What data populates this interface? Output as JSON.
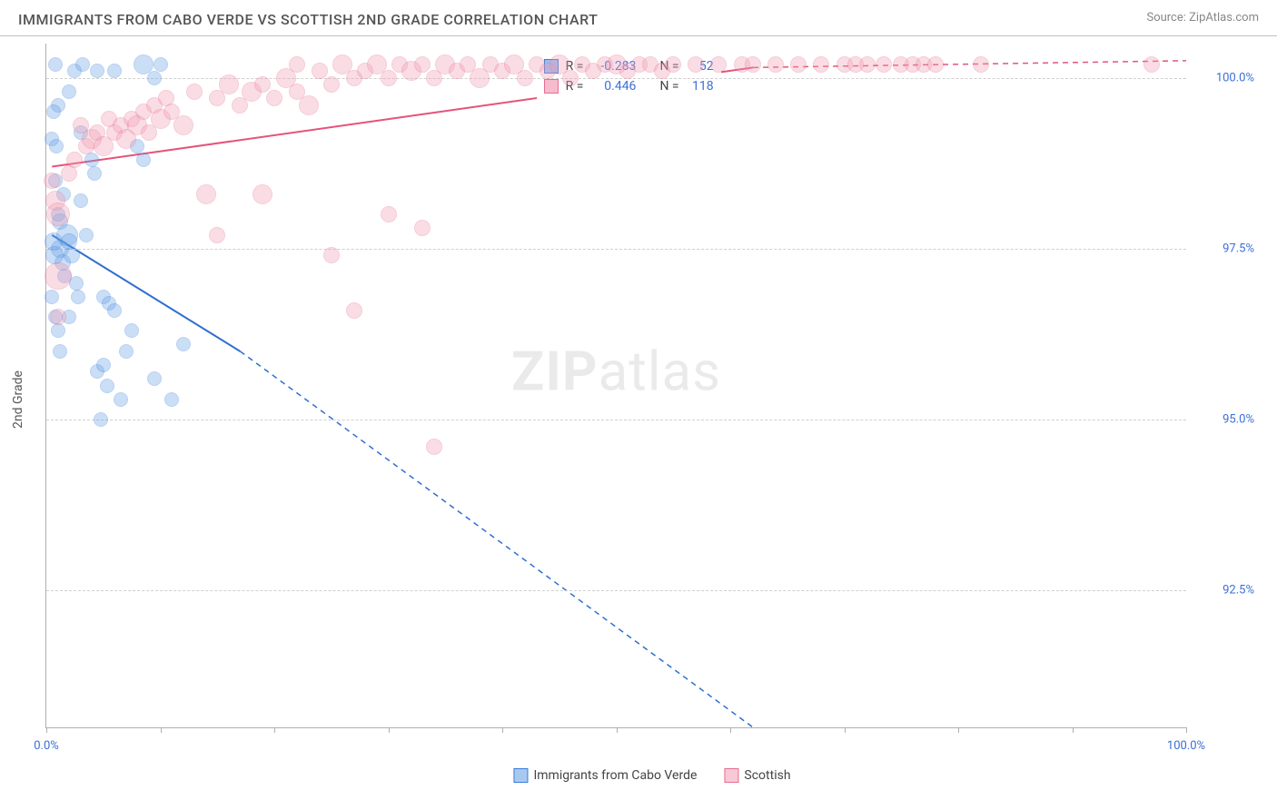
{
  "header": {
    "title": "IMMIGRANTS FROM CABO VERDE VS SCOTTISH 2ND GRADE CORRELATION CHART",
    "source": "Source: ZipAtlas.com"
  },
  "watermark": {
    "zip": "ZIP",
    "atlas": "atlas"
  },
  "chart": {
    "type": "scatter",
    "y_label": "2nd Grade",
    "background_color": "#ffffff",
    "grid_color": "#d0d0d0",
    "axis_color": "#b0b0b0",
    "tick_font_color": "#3b6fd8",
    "tick_fontsize": 13,
    "label_fontsize": 14,
    "xlim": [
      0,
      100
    ],
    "ylim": [
      90.5,
      100.5
    ],
    "x_ticks": [
      0,
      10,
      20,
      30,
      40,
      50,
      60,
      70,
      80,
      90,
      100
    ],
    "x_tick_labels": {
      "0": "0.0%",
      "100": "100.0%"
    },
    "y_gridlines": [
      92.5,
      95.0,
      97.5,
      100.0
    ],
    "y_tick_labels": {
      "92.5": "92.5%",
      "95.0": "95.0%",
      "97.5": "97.5%",
      "100.0": "100.0%"
    },
    "series": [
      {
        "name": "Immigrants from Cabo Verde",
        "short": "cabo",
        "fill_color": "#6aa3e8",
        "stroke_color": "#3b7dd8",
        "fill_opacity": 0.35,
        "stroke_opacity": 0.9,
        "stats": {
          "R": "-0.283",
          "N": "52"
        },
        "trend": {
          "x1": 0.5,
          "y1": 97.7,
          "x2": 17,
          "y2": 96.0,
          "solid_until_x": 17,
          "dash_to_x": 62,
          "dash_to_y": 90.5,
          "color": "#2f6fd0",
          "width": 2
        },
        "points": [
          {
            "x": 0.5,
            "y": 99.1,
            "r": 8
          },
          {
            "x": 0.8,
            "y": 98.5,
            "r": 8
          },
          {
            "x": 0.8,
            "y": 100.2,
            "r": 8
          },
          {
            "x": 1.0,
            "y": 99.6,
            "r": 8
          },
          {
            "x": 1.2,
            "y": 97.9,
            "r": 9
          },
          {
            "x": 1.2,
            "y": 97.5,
            "r": 10
          },
          {
            "x": 1.4,
            "y": 97.3,
            "r": 9
          },
          {
            "x": 1.6,
            "y": 97.1,
            "r": 8
          },
          {
            "x": 0.6,
            "y": 97.6,
            "r": 10
          },
          {
            "x": 0.7,
            "y": 97.4,
            "r": 10
          },
          {
            "x": 0.5,
            "y": 96.8,
            "r": 8
          },
          {
            "x": 0.8,
            "y": 96.5,
            "r": 8
          },
          {
            "x": 1.0,
            "y": 96.3,
            "r": 8
          },
          {
            "x": 1.2,
            "y": 96.0,
            "r": 8
          },
          {
            "x": 1.8,
            "y": 97.7,
            "r": 12
          },
          {
            "x": 2.0,
            "y": 97.6,
            "r": 9
          },
          {
            "x": 2.2,
            "y": 97.4,
            "r": 9
          },
          {
            "x": 2.0,
            "y": 99.8,
            "r": 8
          },
          {
            "x": 2.5,
            "y": 100.1,
            "r": 8
          },
          {
            "x": 3.0,
            "y": 99.2,
            "r": 8
          },
          {
            "x": 3.2,
            "y": 100.2,
            "r": 8
          },
          {
            "x": 4.0,
            "y": 98.8,
            "r": 8
          },
          {
            "x": 4.2,
            "y": 98.6,
            "r": 8
          },
          {
            "x": 4.5,
            "y": 100.1,
            "r": 8
          },
          {
            "x": 4.5,
            "y": 95.7,
            "r": 8
          },
          {
            "x": 5.0,
            "y": 95.8,
            "r": 8
          },
          {
            "x": 5.3,
            "y": 95.5,
            "r": 8
          },
          {
            "x": 5.0,
            "y": 96.8,
            "r": 8
          },
          {
            "x": 5.5,
            "y": 96.7,
            "r": 8
          },
          {
            "x": 6.0,
            "y": 96.6,
            "r": 8
          },
          {
            "x": 6.0,
            "y": 100.1,
            "r": 8
          },
          {
            "x": 6.5,
            "y": 95.3,
            "r": 8
          },
          {
            "x": 7.0,
            "y": 96.0,
            "r": 8
          },
          {
            "x": 7.5,
            "y": 96.3,
            "r": 8
          },
          {
            "x": 8.0,
            "y": 99.0,
            "r": 8
          },
          {
            "x": 8.5,
            "y": 98.8,
            "r": 8
          },
          {
            "x": 8.5,
            "y": 100.2,
            "r": 11
          },
          {
            "x": 9.5,
            "y": 100.0,
            "r": 8
          },
          {
            "x": 9.5,
            "y": 95.6,
            "r": 8
          },
          {
            "x": 10.0,
            "y": 100.2,
            "r": 8
          },
          {
            "x": 11.0,
            "y": 95.3,
            "r": 8
          },
          {
            "x": 12.0,
            "y": 96.1,
            "r": 8
          },
          {
            "x": 4.8,
            "y": 95.0,
            "r": 8
          },
          {
            "x": 2.6,
            "y": 97.0,
            "r": 8
          },
          {
            "x": 1.0,
            "y": 98.0,
            "r": 8
          },
          {
            "x": 1.5,
            "y": 98.3,
            "r": 8
          },
          {
            "x": 2.0,
            "y": 96.5,
            "r": 8
          },
          {
            "x": 2.8,
            "y": 96.8,
            "r": 8
          },
          {
            "x": 3.5,
            "y": 97.7,
            "r": 8
          },
          {
            "x": 0.6,
            "y": 99.5,
            "r": 8
          },
          {
            "x": 0.9,
            "y": 99.0,
            "r": 8
          },
          {
            "x": 3.0,
            "y": 98.2,
            "r": 8
          }
        ]
      },
      {
        "name": "Scottish",
        "short": "scot",
        "fill_color": "#f29fb5",
        "stroke_color": "#e56f8f",
        "fill_opacity": 0.35,
        "stroke_opacity": 0.9,
        "stats": {
          "R": "0.446",
          "N": "118"
        },
        "trend": {
          "x1": 0.5,
          "y1": 98.7,
          "x2": 62,
          "y2": 100.15,
          "solid_until_x": 62,
          "dash_to_x": 100,
          "dash_to_y": 100.25,
          "color": "#e5537a",
          "width": 2
        },
        "points": [
          {
            "x": 0.5,
            "y": 98.5,
            "r": 9
          },
          {
            "x": 0.8,
            "y": 98.2,
            "r": 11
          },
          {
            "x": 1.0,
            "y": 98.0,
            "r": 13
          },
          {
            "x": 1.0,
            "y": 97.1,
            "r": 15
          },
          {
            "x": 1.0,
            "y": 96.5,
            "r": 9
          },
          {
            "x": 2.0,
            "y": 98.6,
            "r": 9
          },
          {
            "x": 2.5,
            "y": 98.8,
            "r": 9
          },
          {
            "x": 3.0,
            "y": 99.3,
            "r": 9
          },
          {
            "x": 3.5,
            "y": 99.0,
            "r": 9
          },
          {
            "x": 4.0,
            "y": 99.1,
            "r": 11
          },
          {
            "x": 4.5,
            "y": 99.2,
            "r": 9
          },
          {
            "x": 5.0,
            "y": 99.0,
            "r": 11
          },
          {
            "x": 5.5,
            "y": 99.4,
            "r": 9
          },
          {
            "x": 6.0,
            "y": 99.2,
            "r": 9
          },
          {
            "x": 6.5,
            "y": 99.3,
            "r": 9
          },
          {
            "x": 7.0,
            "y": 99.1,
            "r": 11
          },
          {
            "x": 7.5,
            "y": 99.4,
            "r": 9
          },
          {
            "x": 8.0,
            "y": 99.3,
            "r": 11
          },
          {
            "x": 8.5,
            "y": 99.5,
            "r": 9
          },
          {
            "x": 9.0,
            "y": 99.2,
            "r": 9
          },
          {
            "x": 9.5,
            "y": 99.6,
            "r": 9
          },
          {
            "x": 10.0,
            "y": 99.4,
            "r": 11
          },
          {
            "x": 10.5,
            "y": 99.7,
            "r": 9
          },
          {
            "x": 11.0,
            "y": 99.5,
            "r": 9
          },
          {
            "x": 12.0,
            "y": 99.3,
            "r": 11
          },
          {
            "x": 13.0,
            "y": 99.8,
            "r": 9
          },
          {
            "x": 14.0,
            "y": 98.3,
            "r": 11
          },
          {
            "x": 15.0,
            "y": 99.7,
            "r": 9
          },
          {
            "x": 15.0,
            "y": 97.7,
            "r": 9
          },
          {
            "x": 16.0,
            "y": 99.9,
            "r": 11
          },
          {
            "x": 17.0,
            "y": 99.6,
            "r": 9
          },
          {
            "x": 18.0,
            "y": 99.8,
            "r": 11
          },
          {
            "x": 19.0,
            "y": 99.9,
            "r": 9
          },
          {
            "x": 19.0,
            "y": 98.3,
            "r": 11
          },
          {
            "x": 20.0,
            "y": 99.7,
            "r": 9
          },
          {
            "x": 21.0,
            "y": 100.0,
            "r": 11
          },
          {
            "x": 22.0,
            "y": 99.8,
            "r": 9
          },
          {
            "x": 22.0,
            "y": 100.2,
            "r": 9
          },
          {
            "x": 23.0,
            "y": 99.6,
            "r": 11
          },
          {
            "x": 24.0,
            "y": 100.1,
            "r": 9
          },
          {
            "x": 25.0,
            "y": 99.9,
            "r": 9
          },
          {
            "x": 25.0,
            "y": 97.4,
            "r": 9
          },
          {
            "x": 26.0,
            "y": 100.2,
            "r": 11
          },
          {
            "x": 27.0,
            "y": 100.0,
            "r": 9
          },
          {
            "x": 27.0,
            "y": 96.6,
            "r": 9
          },
          {
            "x": 28.0,
            "y": 100.1,
            "r": 9
          },
          {
            "x": 29.0,
            "y": 100.2,
            "r": 11
          },
          {
            "x": 30.0,
            "y": 100.0,
            "r": 9
          },
          {
            "x": 30.0,
            "y": 98.0,
            "r": 9
          },
          {
            "x": 31.0,
            "y": 100.2,
            "r": 9
          },
          {
            "x": 32.0,
            "y": 100.1,
            "r": 11
          },
          {
            "x": 33.0,
            "y": 100.2,
            "r": 9
          },
          {
            "x": 33.0,
            "y": 97.8,
            "r": 9
          },
          {
            "x": 34.0,
            "y": 100.0,
            "r": 9
          },
          {
            "x": 34.0,
            "y": 94.6,
            "r": 9
          },
          {
            "x": 35.0,
            "y": 100.2,
            "r": 11
          },
          {
            "x": 36.0,
            "y": 100.1,
            "r": 9
          },
          {
            "x": 37.0,
            "y": 100.2,
            "r": 9
          },
          {
            "x": 38.0,
            "y": 100.0,
            "r": 11
          },
          {
            "x": 39.0,
            "y": 100.2,
            "r": 9
          },
          {
            "x": 40.0,
            "y": 100.1,
            "r": 9
          },
          {
            "x": 41.0,
            "y": 100.2,
            "r": 11
          },
          {
            "x": 42.0,
            "y": 100.0,
            "r": 9
          },
          {
            "x": 43.0,
            "y": 100.2,
            "r": 9
          },
          {
            "x": 44.0,
            "y": 100.1,
            "r": 9
          },
          {
            "x": 45.0,
            "y": 100.2,
            "r": 11
          },
          {
            "x": 46.0,
            "y": 100.0,
            "r": 9
          },
          {
            "x": 47.0,
            "y": 100.2,
            "r": 9
          },
          {
            "x": 48.0,
            "y": 100.1,
            "r": 9
          },
          {
            "x": 49.0,
            "y": 100.2,
            "r": 9
          },
          {
            "x": 50.0,
            "y": 100.2,
            "r": 11
          },
          {
            "x": 51.0,
            "y": 100.1,
            "r": 9
          },
          {
            "x": 52.0,
            "y": 100.2,
            "r": 9
          },
          {
            "x": 53.0,
            "y": 100.2,
            "r": 9
          },
          {
            "x": 54.0,
            "y": 100.1,
            "r": 9
          },
          {
            "x": 55.0,
            "y": 100.2,
            "r": 9
          },
          {
            "x": 57.0,
            "y": 100.2,
            "r": 9
          },
          {
            "x": 59.0,
            "y": 100.2,
            "r": 9
          },
          {
            "x": 61.0,
            "y": 100.2,
            "r": 9
          },
          {
            "x": 62.0,
            "y": 100.2,
            "r": 9
          },
          {
            "x": 64.0,
            "y": 100.2,
            "r": 9
          },
          {
            "x": 66.0,
            "y": 100.2,
            "r": 9
          },
          {
            "x": 68.0,
            "y": 100.2,
            "r": 9
          },
          {
            "x": 70.0,
            "y": 100.2,
            "r": 9
          },
          {
            "x": 71.0,
            "y": 100.2,
            "r": 9
          },
          {
            "x": 72.0,
            "y": 100.2,
            "r": 9
          },
          {
            "x": 73.5,
            "y": 100.2,
            "r": 9
          },
          {
            "x": 75.0,
            "y": 100.2,
            "r": 9
          },
          {
            "x": 76.0,
            "y": 100.2,
            "r": 9
          },
          {
            "x": 77.0,
            "y": 100.2,
            "r": 9
          },
          {
            "x": 78.0,
            "y": 100.2,
            "r": 9
          },
          {
            "x": 82.0,
            "y": 100.2,
            "r": 9
          },
          {
            "x": 97.0,
            "y": 100.2,
            "r": 9
          }
        ]
      }
    ],
    "legend_bottom": [
      {
        "label": "Immigrants from Cabo Verde",
        "fill": "#a8c8f0",
        "border": "#3b7dd8"
      },
      {
        "label": "Scottish",
        "fill": "#f8c8d6",
        "border": "#e56f8f"
      }
    ],
    "stats_box": {
      "rows": [
        {
          "swatch_fill": "#9bbef0",
          "swatch_border": "#3b7dd8",
          "R_label": "R =",
          "R": "-0.283",
          "N_label": "N =",
          "N": "52"
        },
        {
          "swatch_fill": "#f6bccd",
          "swatch_border": "#e56f8f",
          "R_label": "R =",
          "R": "0.446",
          "N_label": "N =",
          "N": "118"
        }
      ]
    }
  }
}
